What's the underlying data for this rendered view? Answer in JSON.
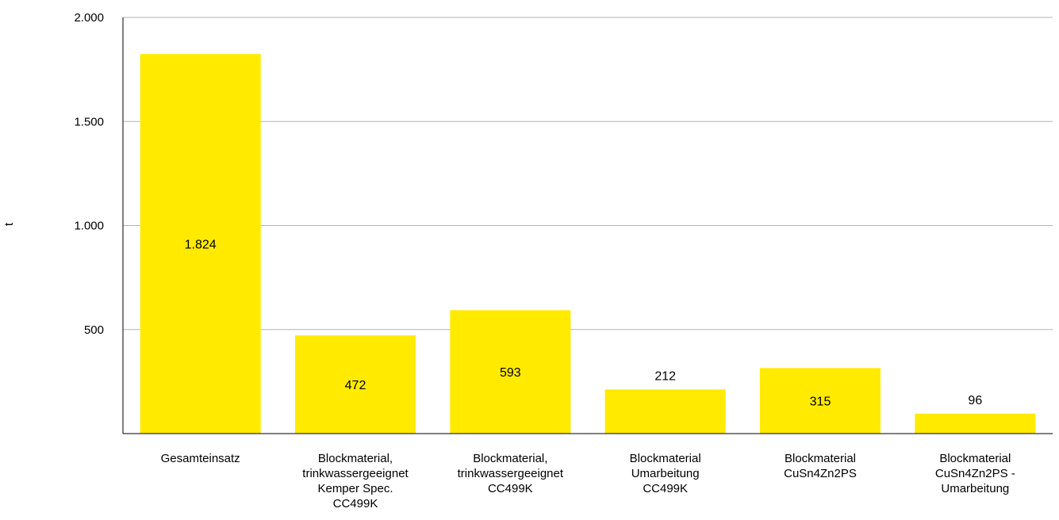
{
  "chart_data": {
    "type": "bar",
    "title": "",
    "xlabel": "",
    "ylabel": "t",
    "ylim": [
      0,
      2000
    ],
    "yticks": [
      500,
      1000,
      1500,
      2000
    ],
    "ytick_labels": [
      "500",
      "1.000",
      "1.500",
      "2.000"
    ],
    "grid": true,
    "legend": "none",
    "bar_color": "#ffea00",
    "categories": [
      [
        "Gesamteinsatz"
      ],
      [
        "Blockmaterial,",
        "trinkwassergeeignet",
        "Kemper Spec.",
        "CC499K"
      ],
      [
        "Blockmaterial,",
        "trinkwassergeeignet",
        "CC499K"
      ],
      [
        "Blockmaterial",
        "Umarbeitung",
        "CC499K"
      ],
      [
        "Blockmaterial",
        "CuSn4Zn2PS"
      ],
      [
        "Blockmaterial",
        "CuSn4Zn2PS -",
        "Umarbeitung"
      ]
    ],
    "values": [
      1824,
      472,
      593,
      212,
      315,
      96
    ],
    "value_labels": [
      "1.824",
      "472",
      "593",
      "212",
      "315",
      "96"
    ]
  }
}
